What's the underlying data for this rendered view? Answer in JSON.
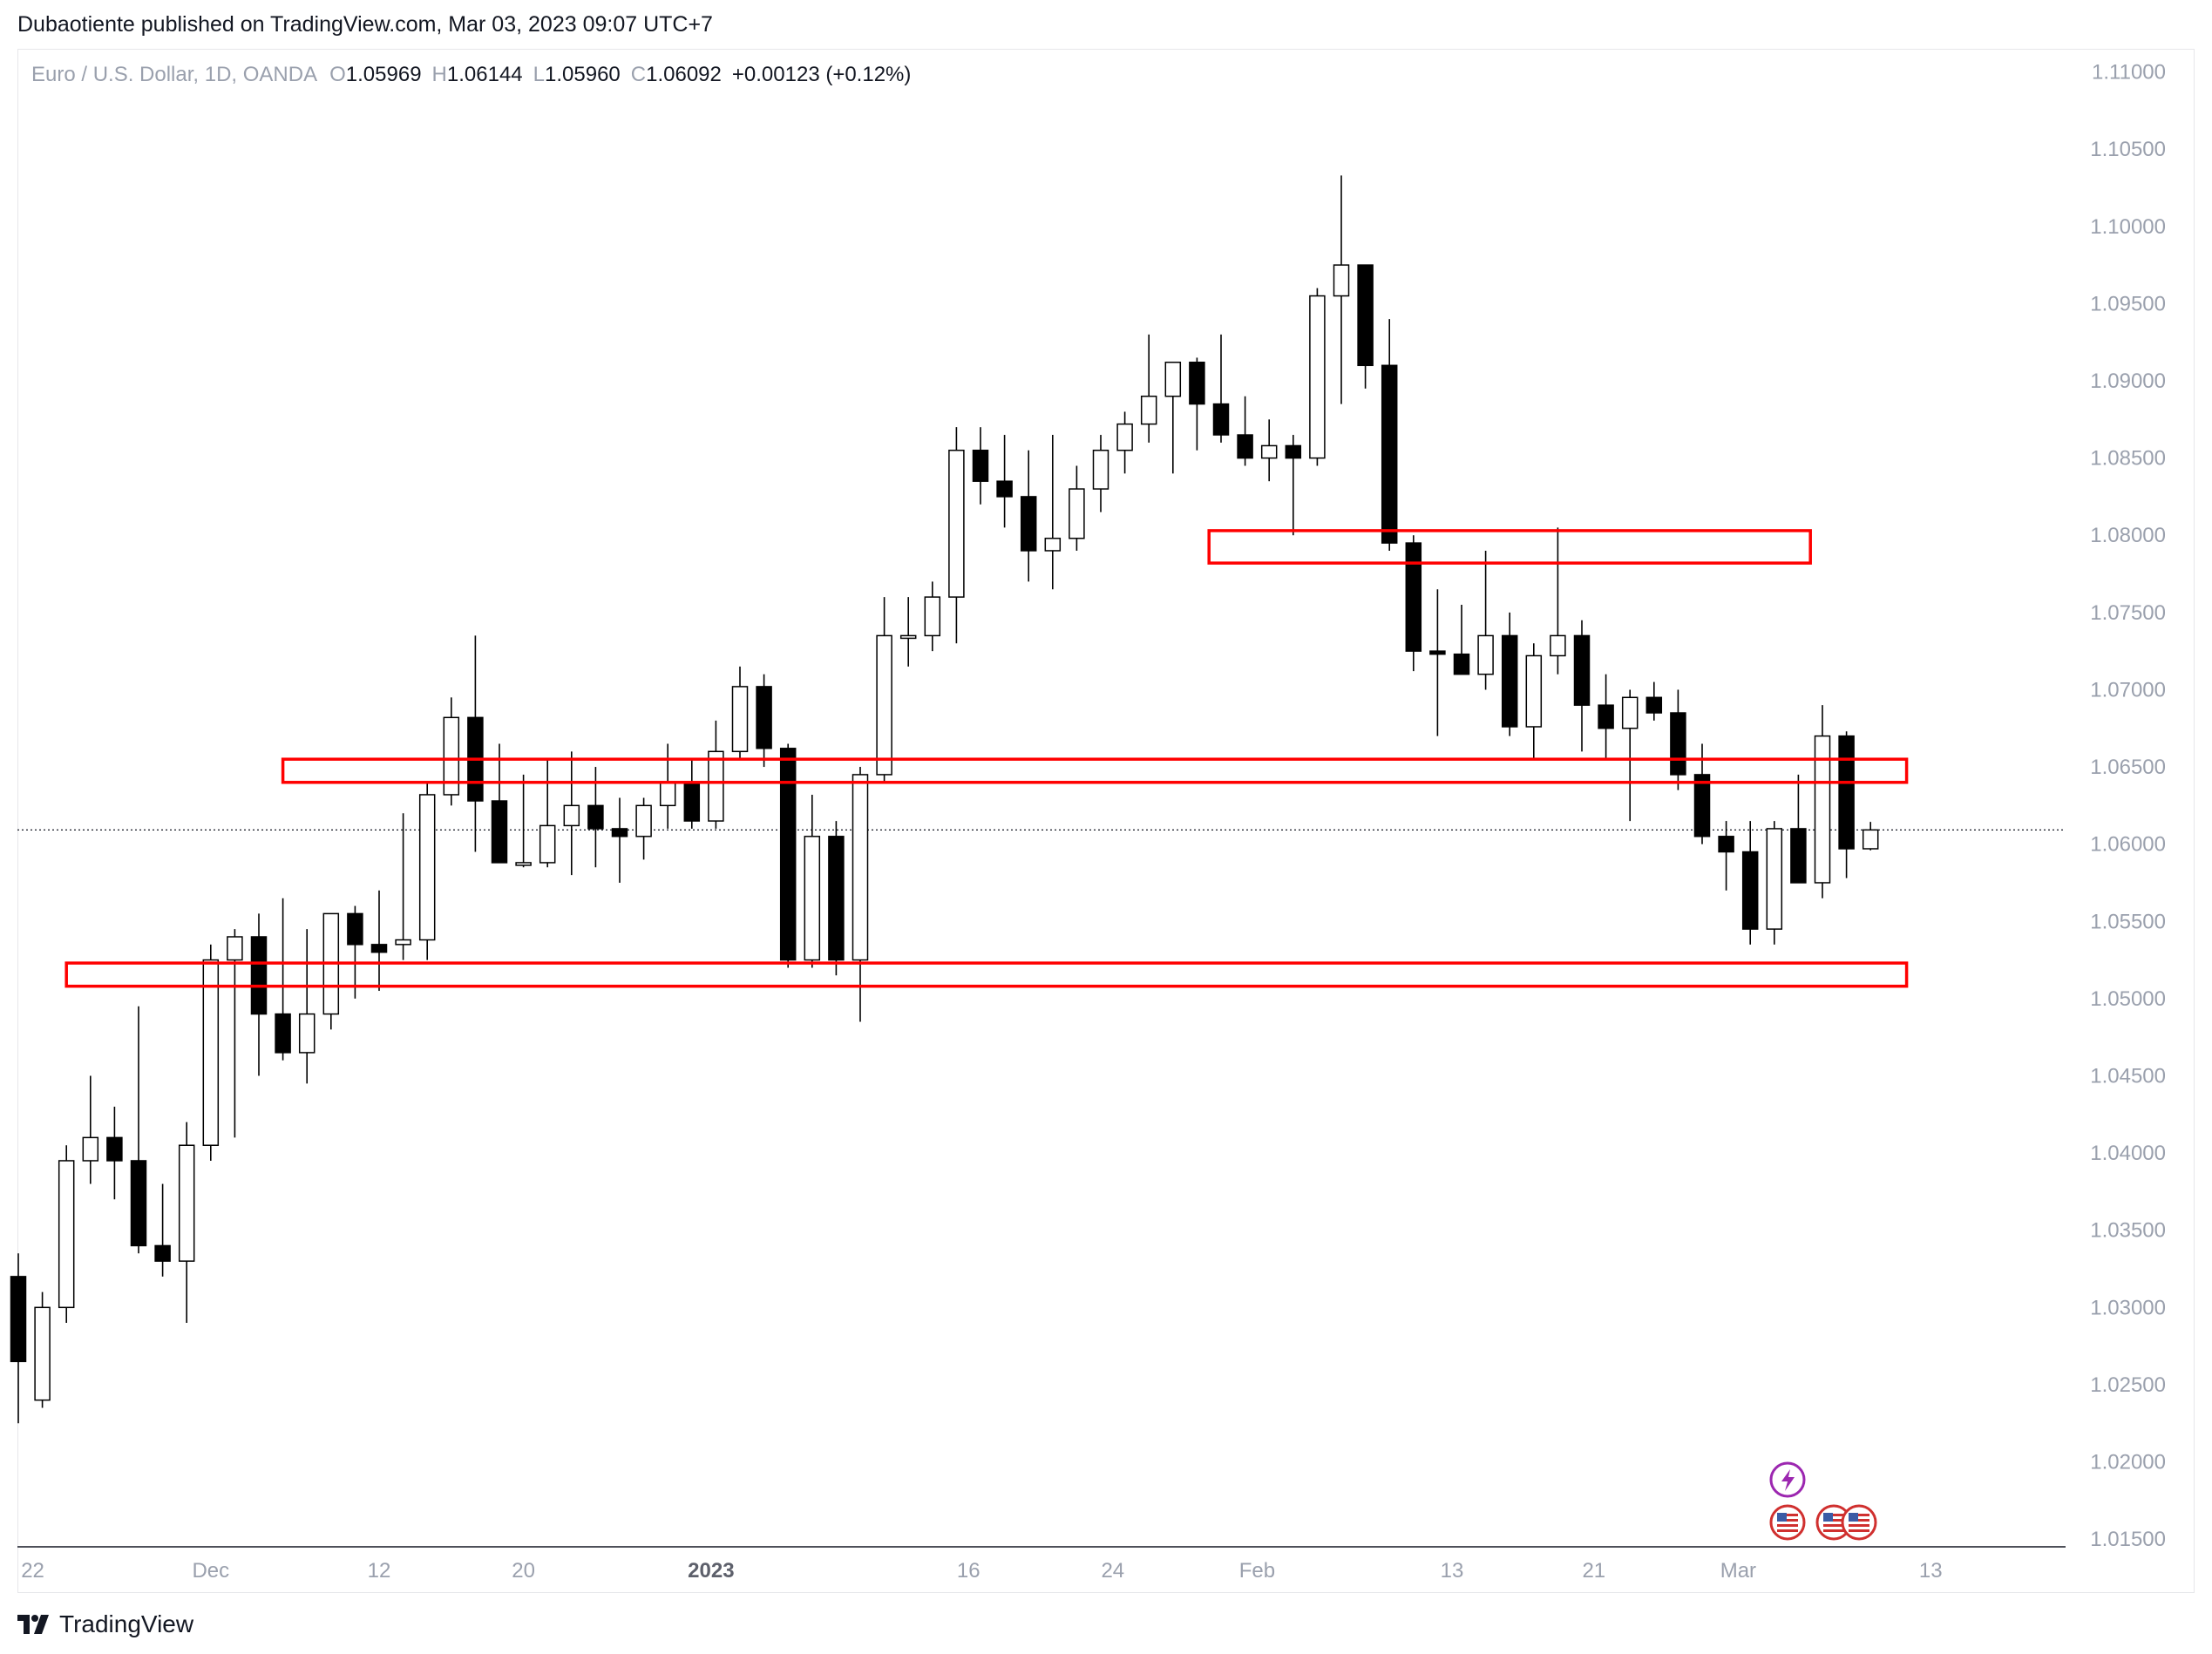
{
  "header": {
    "published_by": "Dubaotiente published on TradingView.com, Mar 03, 2023 09:07 UTC+7"
  },
  "legend": {
    "symbol": "Euro / U.S. Dollar, 1D, OANDA",
    "o_label": "O",
    "o_value": "1.05969",
    "h_label": "H",
    "h_value": "1.06144",
    "l_label": "L",
    "l_value": "1.05960",
    "c_label": "C",
    "c_value": "1.06092",
    "change": "+0.00123 (+0.12%)"
  },
  "footer": {
    "brand": "TradingView"
  },
  "colors": {
    "up_fill": "#ffffff",
    "down_fill": "#000000",
    "zone_stroke": "#ff0000",
    "axis_text": "#9aa0ad"
  },
  "event_icons": [
    "lightning-icon",
    "us-flag-icon",
    "us-flag-icon",
    "us-flag-icon"
  ],
  "chart_data": {
    "type": "candlestick",
    "timeframe": "1D",
    "ylim": [
      1.0145,
      1.1115
    ],
    "current_price": 1.06092,
    "y_ticks": [
      "1.11000",
      "1.10500",
      "1.10000",
      "1.09500",
      "1.09000",
      "1.08500",
      "1.08000",
      "1.07500",
      "1.07000",
      "1.06500",
      "1.06000",
      "1.05500",
      "1.05000",
      "1.04500",
      "1.04000",
      "1.03500",
      "1.03000",
      "1.02500",
      "1.02000",
      "1.01500"
    ],
    "x_ticks": [
      {
        "label": "22",
        "bar": 0.6,
        "bold": false
      },
      {
        "label": "Dec",
        "bar": 8.0,
        "bold": false
      },
      {
        "label": "12",
        "bar": 15.0,
        "bold": false
      },
      {
        "label": "20",
        "bar": 21.0,
        "bold": false
      },
      {
        "label": "2023",
        "bar": 28.8,
        "bold": true
      },
      {
        "label": "16",
        "bar": 39.5,
        "bold": false
      },
      {
        "label": "24",
        "bar": 45.5,
        "bold": false
      },
      {
        "label": "Feb",
        "bar": 51.5,
        "bold": false
      },
      {
        "label": "13",
        "bar": 59.6,
        "bold": false
      },
      {
        "label": "21",
        "bar": 65.5,
        "bold": false
      },
      {
        "label": "Mar",
        "bar": 71.5,
        "bold": false
      },
      {
        "label": "13",
        "bar": 79.5,
        "bold": false
      }
    ],
    "candles": [
      [
        1.032,
        1.0335,
        1.0225,
        1.0265
      ],
      [
        1.024,
        1.031,
        1.0235,
        1.03
      ],
      [
        1.03,
        1.0405,
        1.029,
        1.0395
      ],
      [
        1.0395,
        1.045,
        1.038,
        1.041
      ],
      [
        1.041,
        1.043,
        1.037,
        1.0395
      ],
      [
        1.0395,
        1.0495,
        1.0335,
        1.034
      ],
      [
        1.034,
        1.038,
        1.032,
        1.033
      ],
      [
        1.033,
        1.042,
        1.029,
        1.0405
      ],
      [
        1.0405,
        1.0535,
        1.0395,
        1.0525
      ],
      [
        1.0525,
        1.0545,
        1.041,
        1.054
      ],
      [
        1.054,
        1.0555,
        1.045,
        1.049
      ],
      [
        1.049,
        1.0565,
        1.046,
        1.0465
      ],
      [
        1.0465,
        1.0545,
        1.0445,
        1.049
      ],
      [
        1.049,
        1.0555,
        1.048,
        1.0555
      ],
      [
        1.0555,
        1.056,
        1.05,
        1.0535
      ],
      [
        1.0535,
        1.057,
        1.0505,
        1.053
      ],
      [
        1.0535,
        1.062,
        1.0525,
        1.0538
      ],
      [
        1.0538,
        1.064,
        1.0525,
        1.0632
      ],
      [
        1.0632,
        1.0695,
        1.0625,
        1.0682
      ],
      [
        1.0682,
        1.0735,
        1.0595,
        1.0628
      ],
      [
        1.0628,
        1.0665,
        1.059,
        1.0588
      ],
      [
        1.0588,
        1.0645,
        1.0585,
        1.0588
      ],
      [
        1.0588,
        1.0655,
        1.0585,
        1.0612
      ],
      [
        1.0612,
        1.066,
        1.058,
        1.0625
      ],
      [
        1.0625,
        1.065,
        1.0585,
        1.061
      ],
      [
        1.061,
        1.063,
        1.0575,
        1.0605
      ],
      [
        1.0605,
        1.063,
        1.059,
        1.0625
      ],
      [
        1.0625,
        1.0665,
        1.061,
        1.064
      ],
      [
        1.064,
        1.0655,
        1.061,
        1.0615
      ],
      [
        1.0615,
        1.068,
        1.061,
        1.066
      ],
      [
        1.066,
        1.0715,
        1.0655,
        1.0702
      ],
      [
        1.0702,
        1.071,
        1.065,
        1.0662
      ],
      [
        1.0662,
        1.0665,
        1.052,
        1.0525
      ],
      [
        1.0525,
        1.0632,
        1.052,
        1.0605
      ],
      [
        1.0605,
        1.0615,
        1.0515,
        1.0525
      ],
      [
        1.0525,
        1.065,
        1.0485,
        1.0645
      ],
      [
        1.0645,
        1.076,
        1.064,
        1.0735
      ],
      [
        1.0735,
        1.076,
        1.0715,
        1.0735
      ],
      [
        1.0735,
        1.077,
        1.0725,
        1.076
      ],
      [
        1.076,
        1.087,
        1.073,
        1.0855
      ],
      [
        1.0855,
        1.087,
        1.082,
        1.0835
      ],
      [
        1.0835,
        1.0865,
        1.0805,
        1.0825
      ],
      [
        1.0825,
        1.0855,
        1.077,
        1.079
      ],
      [
        1.079,
        1.0865,
        1.0765,
        1.0798
      ],
      [
        1.0798,
        1.0845,
        1.079,
        1.083
      ],
      [
        1.083,
        1.0865,
        1.0815,
        1.0855
      ],
      [
        1.0855,
        1.088,
        1.084,
        1.0872
      ],
      [
        1.0872,
        1.093,
        1.086,
        1.089
      ],
      [
        1.089,
        1.091,
        1.084,
        1.0912
      ],
      [
        1.0912,
        1.0915,
        1.0855,
        1.0885
      ],
      [
        1.0885,
        1.093,
        1.086,
        1.0865
      ],
      [
        1.0865,
        1.089,
        1.0845,
        1.085
      ],
      [
        1.085,
        1.0875,
        1.0835,
        1.0858
      ],
      [
        1.0858,
        1.0865,
        1.08,
        1.085
      ],
      [
        1.085,
        1.096,
        1.0845,
        1.0955
      ],
      [
        1.0955,
        1.1033,
        1.0885,
        1.0975
      ],
      [
        1.0975,
        1.0975,
        1.0895,
        1.091
      ],
      [
        1.091,
        1.094,
        1.079,
        1.0795
      ],
      [
        1.0795,
        1.08,
        1.0712,
        1.0725
      ],
      [
        1.0725,
        1.0765,
        1.067,
        1.0723
      ],
      [
        1.0723,
        1.0755,
        1.071,
        1.071
      ],
      [
        1.071,
        1.079,
        1.07,
        1.0735
      ],
      [
        1.0735,
        1.075,
        1.067,
        1.0676
      ],
      [
        1.0676,
        1.073,
        1.0655,
        1.0722
      ],
      [
        1.0722,
        1.0805,
        1.071,
        1.0735
      ],
      [
        1.0735,
        1.0745,
        1.066,
        1.069
      ],
      [
        1.069,
        1.071,
        1.0655,
        1.0675
      ],
      [
        1.0675,
        1.07,
        1.0615,
        1.0695
      ],
      [
        1.0695,
        1.0705,
        1.068,
        1.0685
      ],
      [
        1.0685,
        1.07,
        1.0635,
        1.0645
      ],
      [
        1.0645,
        1.0665,
        1.06,
        1.0605
      ],
      [
        1.0605,
        1.0615,
        1.057,
        1.0595
      ],
      [
        1.0595,
        1.0615,
        1.0535,
        1.0545
      ],
      [
        1.0545,
        1.0615,
        1.0535,
        1.061
      ],
      [
        1.061,
        1.0645,
        1.0575,
        1.0575
      ],
      [
        1.0575,
        1.069,
        1.0565,
        1.067
      ],
      [
        1.067,
        1.0673,
        1.0578,
        1.0597
      ],
      [
        1.0597,
        1.06144,
        1.0596,
        1.06092
      ]
    ],
    "zones": [
      {
        "start_bar": 49.5,
        "end_bar": 74.5,
        "top": 1.0803,
        "bottom": 1.0782
      },
      {
        "start_bar": 11.0,
        "end_bar": 78.5,
        "top": 1.0655,
        "bottom": 1.064
      },
      {
        "start_bar": 2.0,
        "end_bar": 78.5,
        "top": 1.0523,
        "bottom": 1.0508
      }
    ]
  }
}
